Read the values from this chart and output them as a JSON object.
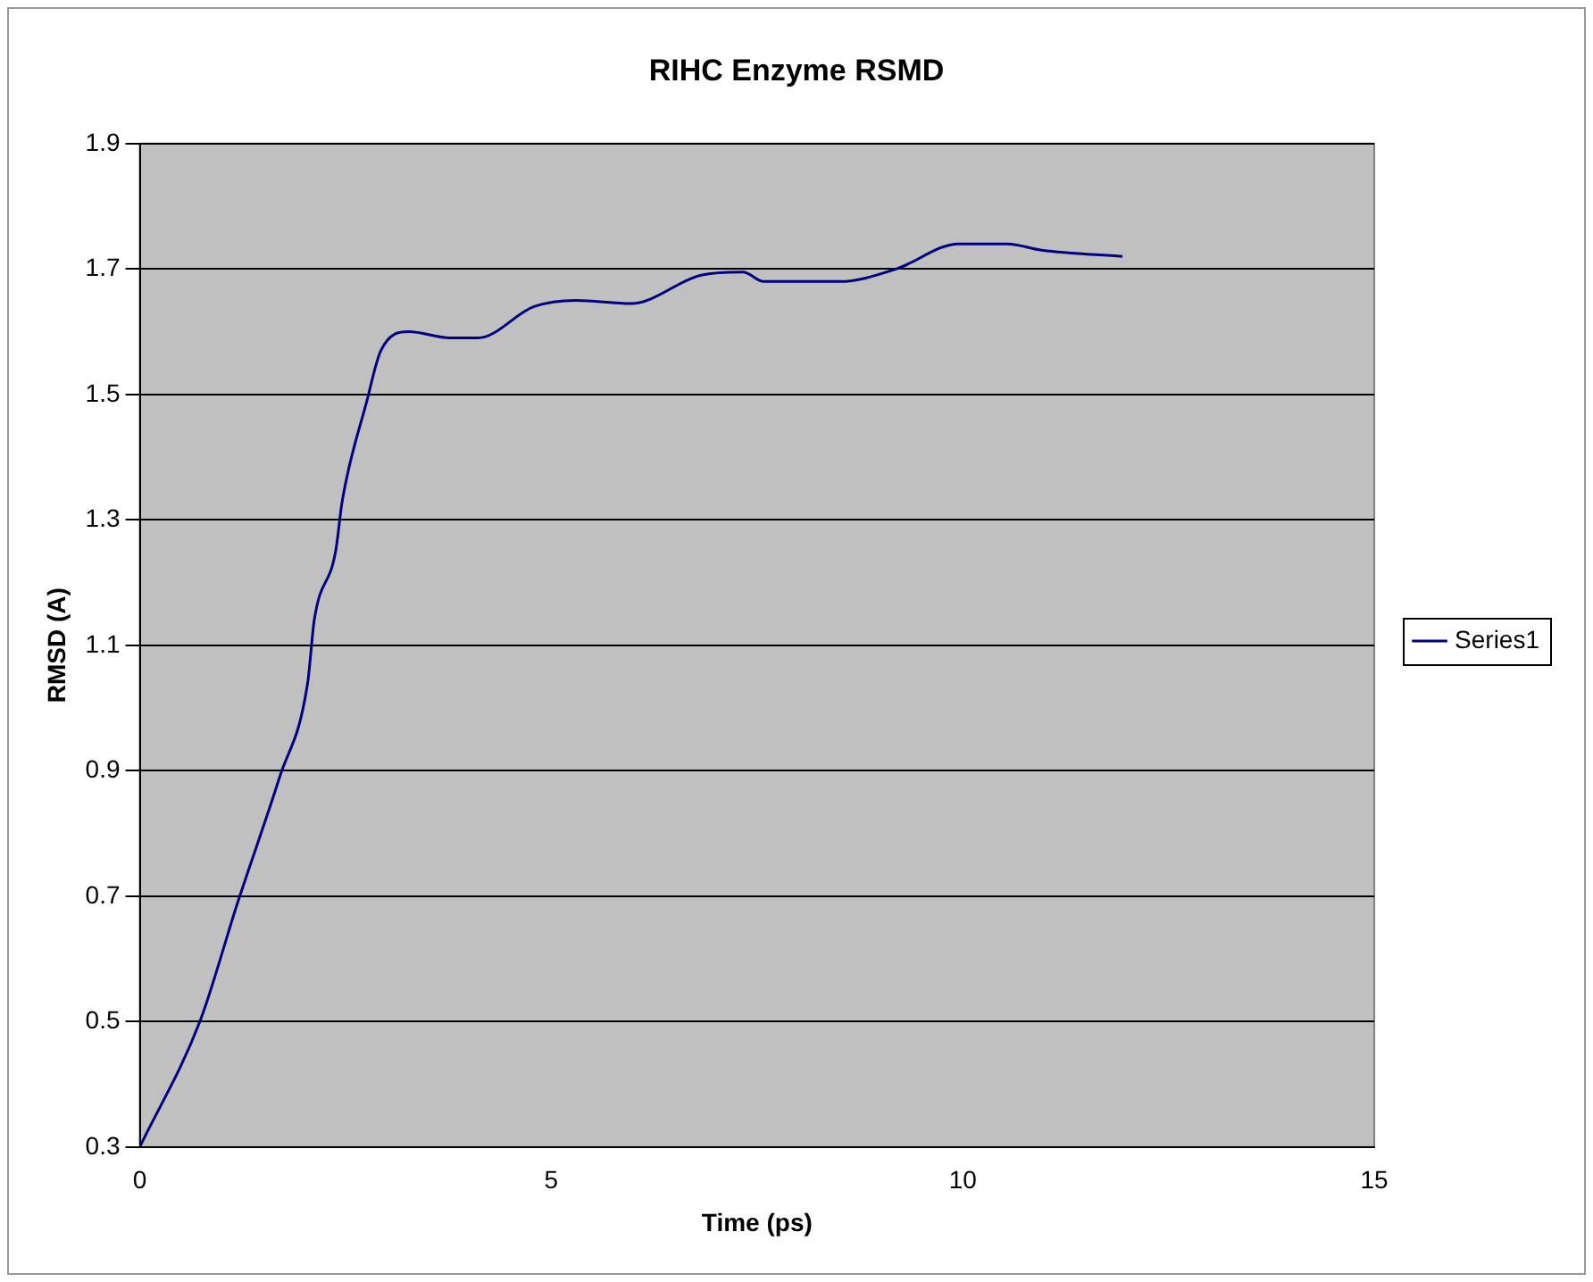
{
  "chart_data": {
    "type": "line",
    "title": "RIHC Enzyme RSMD",
    "xlabel": "Time (ps)",
    "ylabel": "RMSD (A)",
    "x": [
      0,
      0.73,
      1.19,
      1.7,
      2.04,
      2.12,
      2.38,
      2.46,
      2.76,
      2.93,
      3.27,
      3.77,
      4.11,
      4.79,
      5.3,
      5.97,
      6.82,
      7.33,
      7.58,
      8.51,
      9.19,
      9.95,
      10.54,
      10.96,
      11.94
    ],
    "series": [
      {
        "name": "Series1",
        "color": "#000080",
        "values": [
          0.3,
          0.5,
          0.69,
          0.89,
          1.04,
          1.14,
          1.25,
          1.33,
          1.49,
          1.57,
          1.6,
          1.59,
          1.59,
          1.64,
          1.65,
          1.645,
          1.69,
          1.695,
          1.68,
          1.68,
          1.7,
          1.74,
          1.74,
          1.73,
          1.72
        ]
      }
    ],
    "xlim": [
      0,
      15
    ],
    "xticks": [
      0,
      5,
      10,
      15
    ],
    "ylim": [
      0.3,
      1.9
    ],
    "yticks": [
      {
        "value": 0.3,
        "label": "0.3"
      },
      {
        "value": 0.5,
        "label": "0.5"
      },
      {
        "value": 0.7,
        "label": "0.7"
      },
      {
        "value": 0.9,
        "label": "0.9"
      },
      {
        "value": 1.1,
        "label": "1.1"
      },
      {
        "value": 1.3,
        "label": "1.3"
      },
      {
        "value": 1.5,
        "label": "1.5"
      },
      {
        "value": 1.7,
        "label": "1.7"
      },
      {
        "value": 1.9,
        "label": "1.9"
      }
    ],
    "grid": "y",
    "legend": "right",
    "marker": "none",
    "line_style": "solid"
  }
}
